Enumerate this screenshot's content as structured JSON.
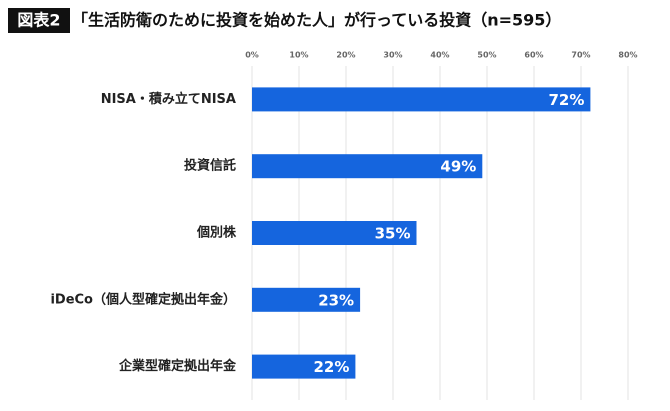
{
  "chart_data": {
    "type": "bar",
    "orientation": "horizontal",
    "label": "図表2",
    "title": "「生活防衛のために投資を始めた人」が行っている投資（n=595）",
    "categories": [
      "NISA・積み立てNISA",
      "投資信託",
      "個別株",
      "iDeCo（個人型確定拠出年金）",
      "企業型確定拠出年金"
    ],
    "values": [
      72,
      49,
      35,
      23,
      22
    ],
    "value_labels": [
      "72%",
      "49%",
      "35%",
      "23%",
      "22%"
    ],
    "color": "#1565de",
    "xlim": [
      0,
      80
    ],
    "xticks": [
      {
        "value": 0,
        "label": "0%"
      },
      {
        "value": 10,
        "label": "10%"
      },
      {
        "value": 20,
        "label": "20%"
      },
      {
        "value": 30,
        "label": "30%"
      },
      {
        "value": 40,
        "label": "40%"
      },
      {
        "value": 50,
        "label": "50%"
      },
      {
        "value": 60,
        "label": "60%"
      },
      {
        "value": 70,
        "label": "70%"
      },
      {
        "value": 80,
        "label": "80%"
      }
    ],
    "grid": true
  }
}
